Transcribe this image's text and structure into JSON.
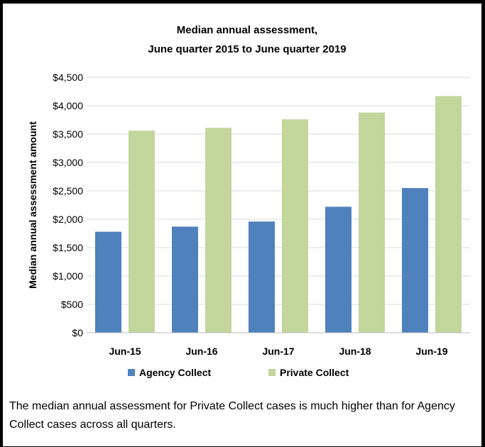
{
  "chart_data": {
    "type": "bar",
    "title_line1": "Median annual assessment,",
    "title_line2": "June quarter 2015 to June quarter 2019",
    "xlabel": "",
    "ylabel": "Median annual assessment amount",
    "categories": [
      "Jun-15",
      "Jun-16",
      "Jun-17",
      "Jun-18",
      "Jun-19"
    ],
    "series": [
      {
        "name": "Agency Collect",
        "color": "#4f81bd",
        "values": [
          1780,
          1870,
          1960,
          2220,
          2550
        ]
      },
      {
        "name": "Private Collect",
        "color": "#c3d69b",
        "values": [
          3560,
          3610,
          3760,
          3880,
          4170
        ]
      }
    ],
    "ylim": [
      0,
      4500
    ],
    "yticks": [
      0,
      500,
      1000,
      1500,
      2000,
      2500,
      3000,
      3500,
      4000,
      4500
    ],
    "ytick_labels": [
      "$0",
      "$500",
      "$1,000",
      "$1,500",
      "$2,000",
      "$2,500",
      "$3,000",
      "$3,500",
      "$4,000",
      "$4,500"
    ],
    "grid": true,
    "legend_position": "bottom"
  },
  "caption": "The median annual assessment for Private Collect cases is much higher than for Agency Collect cases across all quarters."
}
